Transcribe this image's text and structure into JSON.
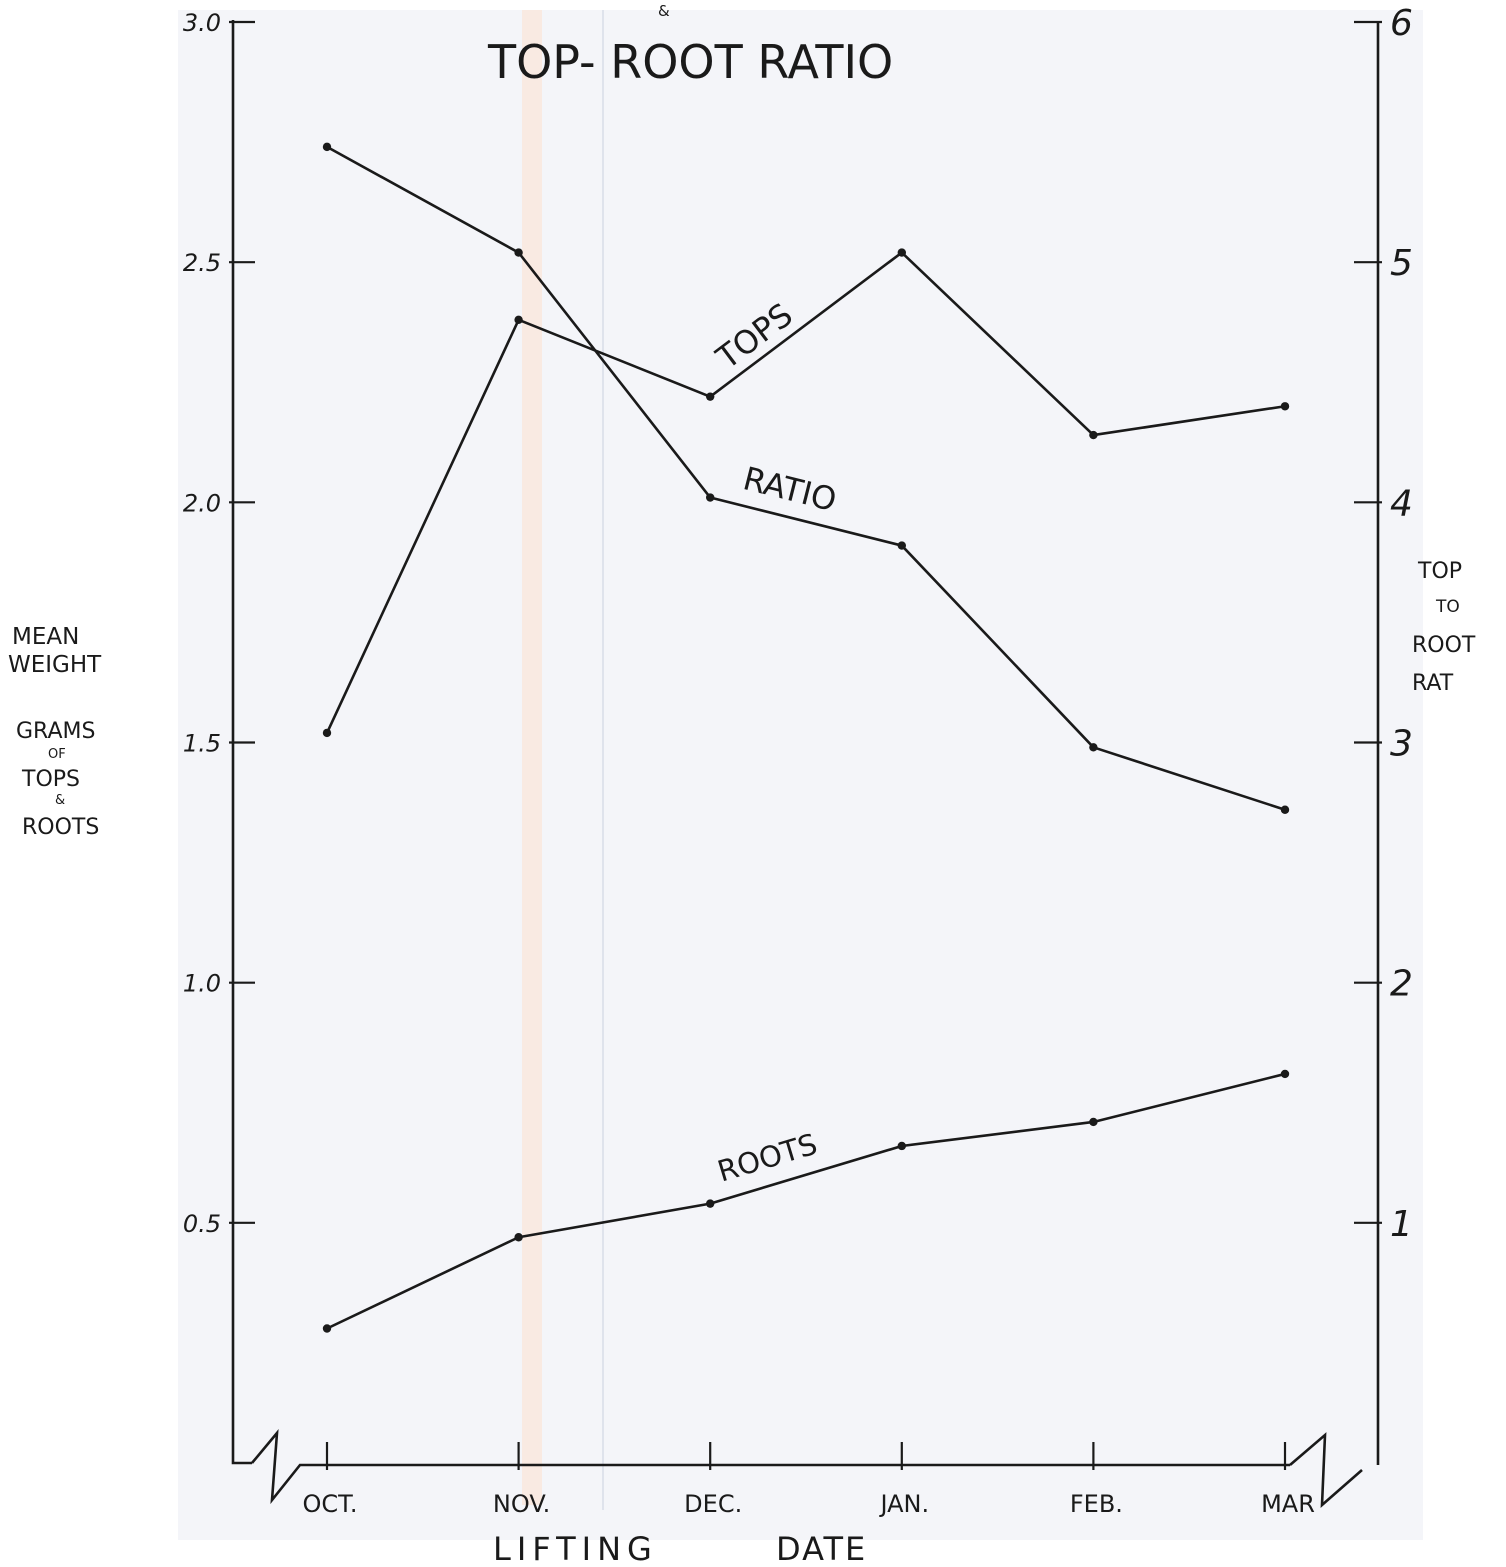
{
  "chart_data": {
    "type": "line",
    "title": "TOP- ROOT RATIO",
    "title_mark": "&",
    "categories": [
      "OCT.",
      "NOV.",
      "DEC.",
      "JAN.",
      "FEB.",
      "MAR"
    ],
    "xlabel": "LIFTING DATE",
    "xlabel_words": [
      "LIFTING",
      "DATE"
    ],
    "ylabel_left": {
      "lines": [
        "MEAN",
        "WEIGHT"
      ],
      "sub_lines": [
        "GRAMS",
        "OF",
        "TOPS",
        "&",
        "ROOTS"
      ]
    },
    "ylabel_right": {
      "lines": [
        "TOP",
        "TO",
        "ROOT",
        "RAT"
      ]
    },
    "y_left": {
      "ticks": [
        "3.0",
        "2.5",
        "2.0",
        "1.5",
        "1.0",
        "0.5"
      ],
      "tick_values": [
        3.0,
        2.5,
        2.0,
        1.5,
        1.0,
        0.5
      ],
      "range": [
        0,
        3.0
      ]
    },
    "y_right": {
      "ticks": [
        "6",
        "5",
        "4",
        "3",
        "2",
        "1"
      ],
      "tick_values": [
        6,
        5,
        4,
        3,
        2,
        1
      ],
      "range": [
        0,
        6
      ]
    },
    "grid": false,
    "series": [
      {
        "name": "TOPS",
        "axis": "left",
        "values": [
          1.52,
          2.38,
          2.22,
          2.52,
          2.14,
          2.2
        ]
      },
      {
        "name": "RATIO",
        "axis": "right",
        "values": [
          5.48,
          5.04,
          4.02,
          3.82,
          2.98,
          2.72
        ]
      },
      {
        "name": "ROOTS",
        "axis": "left",
        "values": [
          0.28,
          0.47,
          0.54,
          0.66,
          0.71,
          0.81
        ]
      }
    ]
  }
}
